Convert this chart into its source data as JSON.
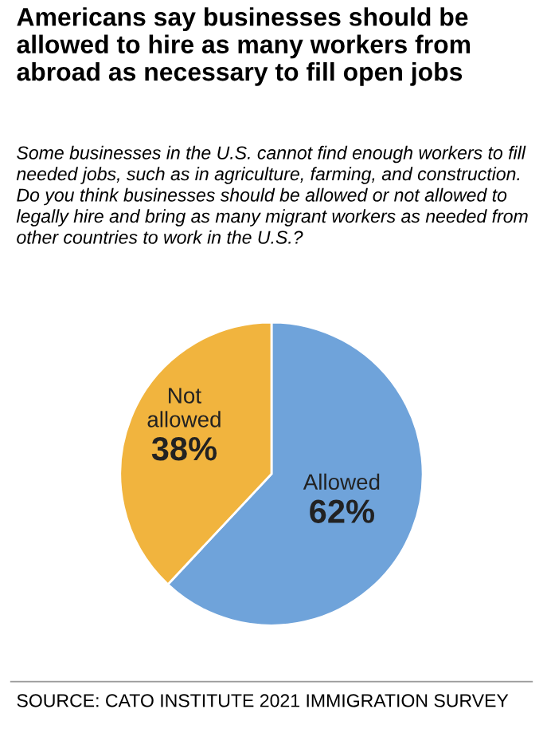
{
  "chart_data": {
    "type": "pie",
    "title": "Americans say businesses should be allowed to hire as many workers from abroad as necessary to fill open jobs",
    "subtitle": "Some businesses in the U.S. cannot find enough workers to fill needed jobs, such as in agriculture, farming, and construction. Do you think businesses should be allowed or not allowed to legally hire and bring as many migrant workers as needed from other countries to work in the U.S.?",
    "categories": [
      "Allowed",
      "Not\nallowed"
    ],
    "values": [
      62,
      38
    ],
    "value_labels": [
      "62%",
      "38%"
    ],
    "colors": [
      "#6fa3da",
      "#f1b43e"
    ],
    "annotations": [
      "SOURCE: CATO INSTITUTE 2021 IMMIGRATION SURVEY"
    ]
  }
}
